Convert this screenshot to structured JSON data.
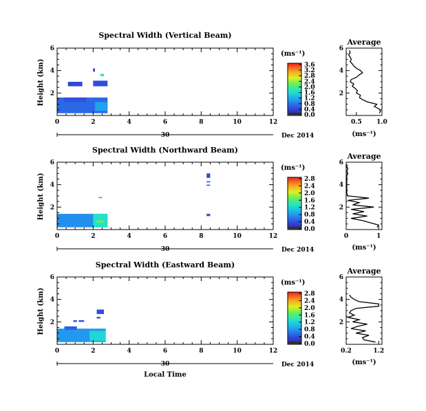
{
  "figure": {
    "date_label": "Dec 2014",
    "x_label": "Local Time"
  },
  "chart_data": [
    {
      "type": "heatmap",
      "title": "Spectral Width (Vertical Beam)",
      "ylabel": "Height (km)",
      "xlabel": "",
      "xlim": [
        0,
        12
      ],
      "ylim": [
        0,
        6
      ],
      "x_ticks": [
        "0",
        "2",
        "4",
        "6",
        "8",
        "10",
        "12"
      ],
      "y_ticks": [
        "2",
        "4",
        "6"
      ],
      "day_label": "30",
      "colorbar": {
        "unit": "(ms⁻¹)",
        "ticks": [
          "0.0",
          "0.4",
          "0.8",
          "1.2",
          "1.6",
          "2.0",
          "2.4",
          "2.8",
          "3.2",
          "3.6"
        ],
        "min": 0.0,
        "max": 3.6
      },
      "cells": [
        {
          "t0": 0.0,
          "t1": 2.8,
          "h0": 0.2,
          "h1": 1.6,
          "v": 0.7
        },
        {
          "t0": 2.1,
          "t1": 2.8,
          "h0": 0.4,
          "h1": 1.2,
          "v": 1.1
        },
        {
          "t0": 0.4,
          "t1": 1.6,
          "h0": 1.2,
          "h1": 1.6,
          "v": 0.55
        },
        {
          "t0": 0.6,
          "t1": 1.4,
          "h0": 2.6,
          "h1": 3.0,
          "v": 0.45
        },
        {
          "t0": 2.0,
          "t1": 2.8,
          "h0": 2.6,
          "h1": 3.1,
          "v": 0.5
        },
        {
          "t0": 2.0,
          "t1": 2.1,
          "h0": 3.9,
          "h1": 4.2,
          "v": 0.35
        },
        {
          "t0": 2.4,
          "t1": 2.6,
          "h0": 3.5,
          "h1": 3.7,
          "v": 1.7
        }
      ],
      "profile": {
        "title": "Average",
        "xlabel": "(ms⁻¹)",
        "xlim": [
          0.3,
          1.0
        ],
        "ylim": [
          0,
          6
        ],
        "x_ticks": [
          "0.5",
          "1.0"
        ],
        "y_ticks": [
          "2",
          "4",
          "6"
        ],
        "x": [
          0.95,
          0.97,
          0.94,
          0.85,
          0.9,
          0.72,
          0.62,
          0.56,
          0.58,
          0.5,
          0.52,
          0.48,
          0.42,
          0.45,
          0.38,
          0.4,
          0.5,
          0.55,
          0.62,
          0.58,
          0.5,
          0.45,
          0.42,
          0.38,
          0.4,
          0.38,
          0.35,
          0.38,
          0.36
        ],
        "h": [
          0.2,
          0.4,
          0.6,
          0.8,
          1.0,
          1.2,
          1.4,
          1.6,
          1.8,
          2.0,
          2.2,
          2.4,
          2.6,
          2.8,
          3.0,
          3.2,
          3.4,
          3.6,
          3.8,
          4.0,
          4.2,
          4.4,
          4.6,
          4.8,
          5.0,
          5.2,
          5.4,
          5.6,
          5.8
        ]
      }
    },
    {
      "type": "heatmap",
      "title": "Spectral Width (Northward Beam)",
      "ylabel": "Height (km)",
      "xlabel": "",
      "xlim": [
        0,
        12
      ],
      "ylim": [
        0,
        6
      ],
      "x_ticks": [
        "0",
        "2",
        "4",
        "6",
        "8",
        "10",
        "12"
      ],
      "y_ticks": [
        "2",
        "4",
        "6"
      ],
      "day_label": "30",
      "colorbar": {
        "unit": "(ms⁻¹)",
        "ticks": [
          "0.0",
          "0.4",
          "0.8",
          "1.2",
          "1.6",
          "2.0",
          "2.4",
          "2.8"
        ],
        "min": 0.0,
        "max": 2.8
      },
      "cells": [
        {
          "t0": 0.0,
          "t1": 2.8,
          "h0": 0.2,
          "h1": 1.4,
          "v": 0.75
        },
        {
          "t0": 2.0,
          "t1": 2.8,
          "h0": 0.2,
          "h1": 1.4,
          "v": 1.3
        },
        {
          "t0": 2.2,
          "t1": 2.6,
          "h0": 0.6,
          "h1": 0.8,
          "v": 1.7
        },
        {
          "t0": 2.3,
          "t1": 2.5,
          "h0": 2.8,
          "h1": 2.9,
          "v": 0.9
        },
        {
          "t0": 8.3,
          "t1": 8.5,
          "h0": 4.6,
          "h1": 5.0,
          "v": 0.4
        },
        {
          "t0": 8.3,
          "t1": 8.5,
          "h0": 4.2,
          "h1": 4.3,
          "v": 0.4
        },
        {
          "t0": 8.3,
          "t1": 8.5,
          "h0": 3.9,
          "h1": 4.0,
          "v": 0.4
        },
        {
          "t0": 8.3,
          "t1": 8.5,
          "h0": 1.2,
          "h1": 1.4,
          "v": 0.4
        }
      ],
      "profile": {
        "title": "Average",
        "xlabel": "(ms⁻¹)",
        "xlim": [
          0,
          1.1
        ],
        "ylim": [
          0,
          6
        ],
        "x_ticks": [
          "0",
          "1"
        ],
        "y_ticks": [
          "2",
          "4",
          "6"
        ],
        "x": [
          0.95,
          1.0,
          0.75,
          0.5,
          0.15,
          0.65,
          0.2,
          0.55,
          0.15,
          0.85,
          0.2,
          0.4,
          0.05,
          0.7,
          0.05,
          0.02,
          0.02,
          0.02,
          0.02,
          0.02,
          0.02,
          0.02,
          0.02,
          0.02,
          0.05,
          0.02,
          0.05,
          0.02,
          0.03
        ],
        "h": [
          0.2,
          0.4,
          0.6,
          0.8,
          1.0,
          1.2,
          1.4,
          1.6,
          1.8,
          2.0,
          2.2,
          2.4,
          2.6,
          2.8,
          3.0,
          3.2,
          3.4,
          3.6,
          3.8,
          4.0,
          4.2,
          4.4,
          4.6,
          4.8,
          5.0,
          5.2,
          5.4,
          5.6,
          5.8
        ]
      }
    },
    {
      "type": "heatmap",
      "title": "Spectral Width (Eastward Beam)",
      "ylabel": "Height (km)",
      "xlabel": "",
      "xlim": [
        0,
        12
      ],
      "ylim": [
        0,
        6
      ],
      "x_ticks": [
        "0",
        "2",
        "4",
        "6",
        "8",
        "10",
        "12"
      ],
      "y_ticks": [
        "2",
        "4",
        "6"
      ],
      "day_label": "30",
      "colorbar": {
        "unit": "(ms⁻¹)",
        "ticks": [
          "0.0",
          "0.4",
          "0.8",
          "1.2",
          "1.6",
          "2.0",
          "2.4",
          "2.8"
        ],
        "min": 0.0,
        "max": 2.8
      },
      "cells": [
        {
          "t0": 0.0,
          "t1": 2.7,
          "h0": 0.2,
          "h1": 1.4,
          "v": 0.8
        },
        {
          "t0": 1.8,
          "t1": 2.7,
          "h0": 0.3,
          "h1": 1.2,
          "v": 1.2
        },
        {
          "t0": 0.4,
          "t1": 1.1,
          "h0": 1.3,
          "h1": 1.6,
          "v": 0.5
        },
        {
          "t0": 1.2,
          "t1": 1.5,
          "h0": 2.0,
          "h1": 2.15,
          "v": 0.4
        },
        {
          "t0": 0.9,
          "t1": 1.1,
          "h0": 2.0,
          "h1": 2.15,
          "v": 0.4
        },
        {
          "t0": 2.2,
          "t1": 2.6,
          "h0": 2.7,
          "h1": 3.1,
          "v": 0.4
        },
        {
          "t0": 2.2,
          "t1": 2.4,
          "h0": 2.3,
          "h1": 2.45,
          "v": 0.4
        }
      ],
      "profile": {
        "title": "Average",
        "xlabel": "(ms⁻¹)",
        "xlim": [
          0.2,
          1.3
        ],
        "ylim": [
          0,
          6
        ],
        "x_ticks": [
          "0.2",
          "1.2"
        ],
        "y_ticks": [
          "2",
          "4",
          "6"
        ],
        "x": [
          1.1,
          0.75,
          0.7,
          0.9,
          0.5,
          0.8,
          0.35,
          0.55,
          0.85,
          0.4,
          0.6,
          0.25,
          0.45,
          0.3,
          0.35,
          0.5,
          1.2,
          1.2,
          0.6,
          0.45,
          0.35,
          0.3
        ],
        "h": [
          0.2,
          0.4,
          0.6,
          0.8,
          1.0,
          1.2,
          1.4,
          1.6,
          1.8,
          2.0,
          2.2,
          2.4,
          2.6,
          2.8,
          3.0,
          3.2,
          3.4,
          3.6,
          3.8,
          4.0,
          4.2,
          4.4
        ]
      }
    }
  ]
}
